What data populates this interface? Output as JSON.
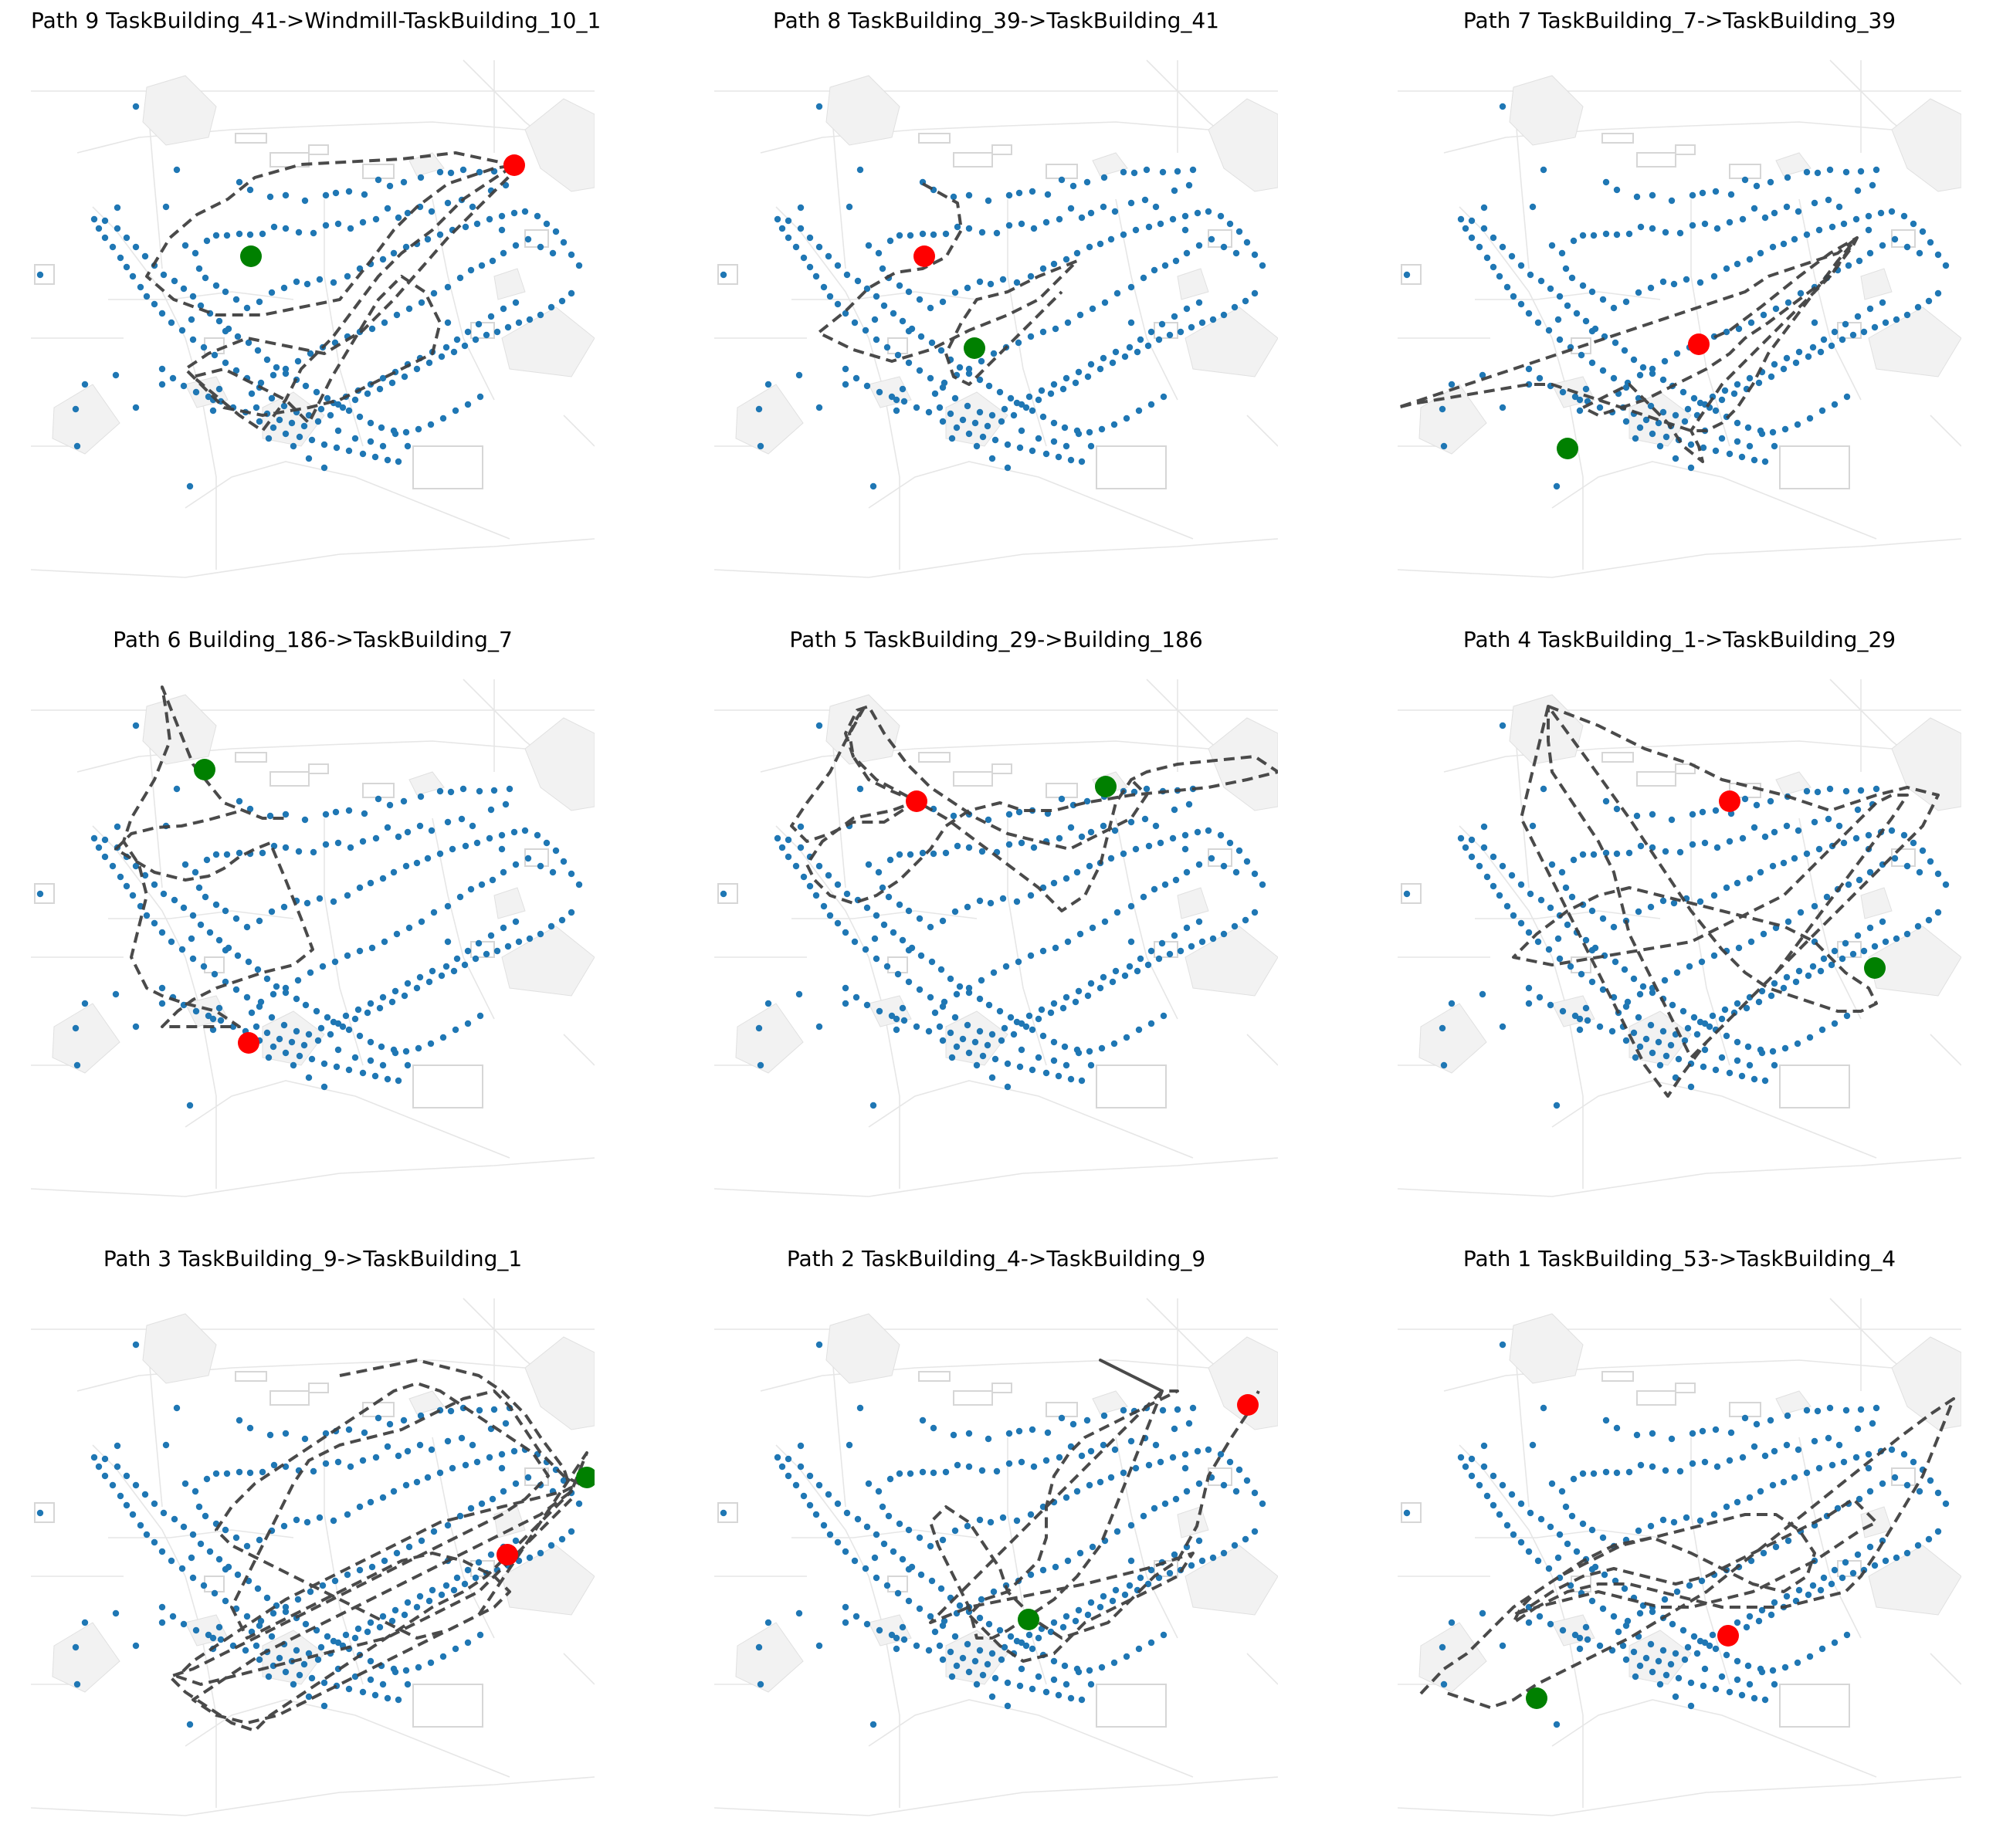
{
  "figure": {
    "panels": [
      {
        "title": "Path 9 TaskBuilding_41->Windmill-TaskBuilding_10_1",
        "start": "TaskBuilding_41",
        "end": "Windmill-TaskBuilding_10_1"
      },
      {
        "title": "Path 8 TaskBuilding_39->TaskBuilding_41",
        "start": "TaskBuilding_39",
        "end": "TaskBuilding_41"
      },
      {
        "title": "Path 7 TaskBuilding_7->TaskBuilding_39",
        "start": "TaskBuilding_7",
        "end": "TaskBuilding_39"
      },
      {
        "title": "Path 6 Building_186->TaskBuilding_7",
        "start": "Building_186",
        "end": "TaskBuilding_7"
      },
      {
        "title": "Path 5 TaskBuilding_29->Building_186",
        "start": "TaskBuilding_29",
        "end": "Building_186"
      },
      {
        "title": "Path 4 TaskBuilding_1->TaskBuilding_29",
        "start": "TaskBuilding_1",
        "end": "TaskBuilding_29"
      },
      {
        "title": "Path 3 TaskBuilding_9->TaskBuilding_1",
        "start": "TaskBuilding_9",
        "end": "TaskBuilding_1"
      },
      {
        "title": "Path 2 TaskBuilding_4->TaskBuilding_9",
        "start": "TaskBuilding_4",
        "end": "TaskBuilding_9"
      },
      {
        "title": "Path 1 TaskBuilding_53->TaskBuilding_4",
        "start": "TaskBuilding_53",
        "end": "TaskBuilding_4"
      }
    ]
  },
  "colors": {
    "building_point": "#1f77b4",
    "path_line": "#404040",
    "start_marker": "#008000",
    "end_marker": "#ff0000",
    "map_base": "#f2f2f2",
    "map_lines": "#e6e6e6"
  }
}
